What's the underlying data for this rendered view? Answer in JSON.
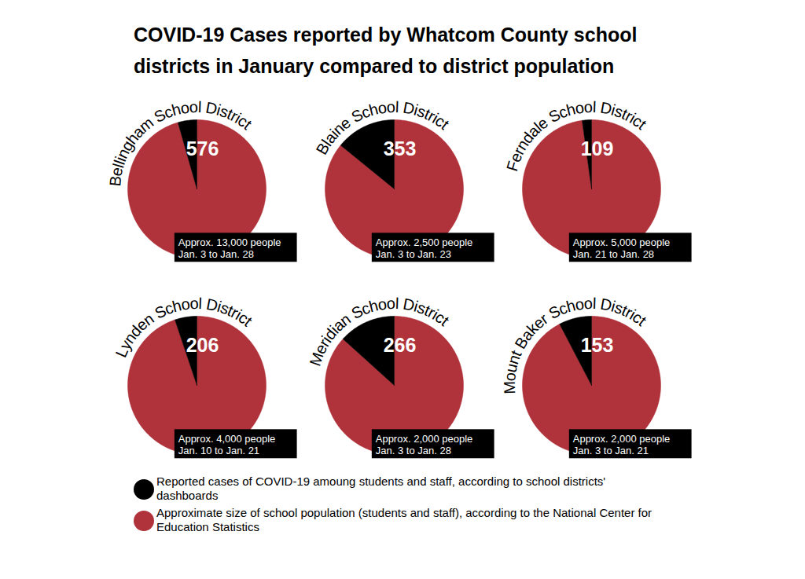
{
  "chart_data": {
    "type": "pie",
    "title": "COVID-19 Cases reported by Whatcom County school districts in January compared to district population",
    "categories": [
      "Bellingham School District",
      "Blaine School District",
      "Ferndale School District",
      "Lynden School District",
      "Meridian School District",
      "Mount Baker School District"
    ],
    "periods": [
      "Jan. 3 to Jan. 28",
      "Jan. 3 to Jan. 23",
      "Jan. 21 to Jan. 28",
      "Jan. 10 to Jan. 21",
      "Jan. 3 to Jan. 28",
      "Jan. 3 to Jan. 21"
    ],
    "series": [
      {
        "name": "Reported cases of COVID-19 amoung students and staff, according to school districts' dashboards",
        "color": "#000000",
        "values": [
          576,
          353,
          109,
          206,
          266,
          153
        ]
      },
      {
        "name": "Approximate size of school population (students and staff), according to the National Center for Education Statistics",
        "color": "#b0323a",
        "values": [
          13000,
          2500,
          5000,
          4000,
          2000,
          2000
        ],
        "value_labels": [
          "Approx. 13,000 people",
          "Approx. 2,500 people",
          "Approx. 5,000 people",
          "Approx. 4,000 people",
          "Approx. 2,000 people",
          "Approx. 2,000 people"
        ]
      }
    ],
    "data_labels": true,
    "legend": "bottom"
  }
}
